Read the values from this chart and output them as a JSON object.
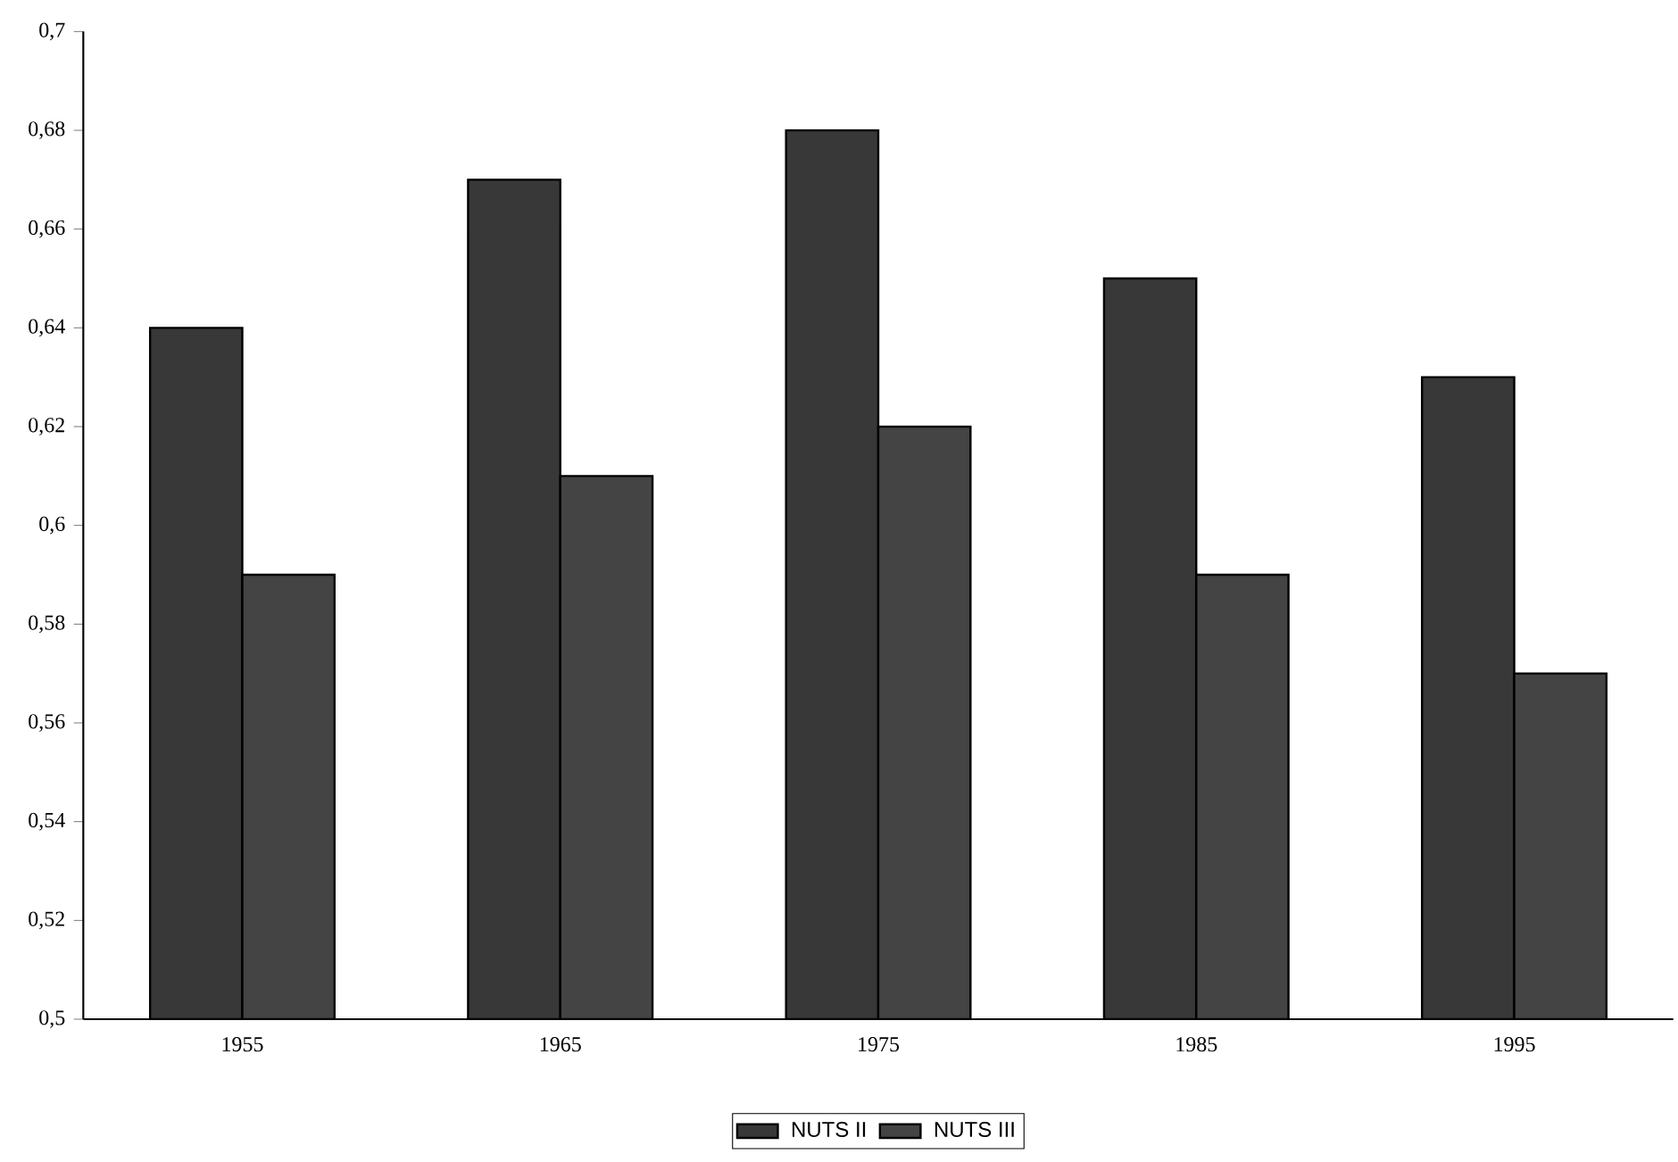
{
  "chart_data": {
    "type": "bar",
    "categories": [
      "1955",
      "1965",
      "1975",
      "1985",
      "1995"
    ],
    "series": [
      {
        "name": "NUTS II",
        "color": "#383838",
        "values": [
          0.64,
          0.67,
          0.68,
          0.65,
          0.63
        ]
      },
      {
        "name": "NUTS III",
        "color": "#444444",
        "values": [
          0.59,
          0.61,
          0.62,
          0.59,
          0.57
        ]
      }
    ],
    "ylim": [
      0.5,
      0.7
    ],
    "yticks": [
      {
        "value": 0.5,
        "label": "0,5"
      },
      {
        "value": 0.52,
        "label": "0,52"
      },
      {
        "value": 0.54,
        "label": "0,54"
      },
      {
        "value": 0.56,
        "label": "0,56"
      },
      {
        "value": 0.58,
        "label": "0,58"
      },
      {
        "value": 0.6,
        "label": "0,6"
      },
      {
        "value": 0.62,
        "label": "0,62"
      },
      {
        "value": 0.64,
        "label": "0,64"
      },
      {
        "value": 0.66,
        "label": "0,66"
      },
      {
        "value": 0.68,
        "label": "0,68"
      },
      {
        "value": 0.7,
        "label": "0,7"
      }
    ],
    "legend": "bottom",
    "grid": false
  }
}
